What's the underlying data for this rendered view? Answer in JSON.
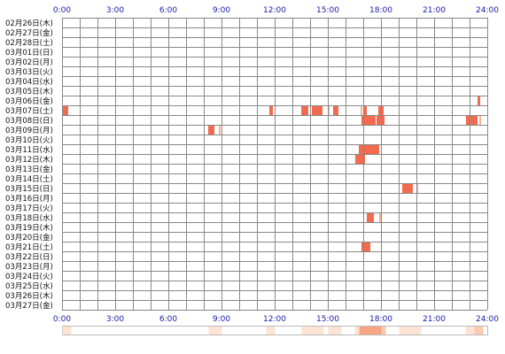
{
  "chart_data": {
    "type": "heatmap",
    "title": "",
    "xlabel": "",
    "ylabel": "",
    "x_range_hours": [
      0,
      24
    ],
    "x_tick_labels": [
      "0:00",
      "3:00",
      "6:00",
      "9:00",
      "12:00",
      "15:00",
      "18:00",
      "21:00",
      "24:00"
    ],
    "grid": true,
    "colors": {
      "activity": "#f26a4f",
      "activity_light": "#f8b090",
      "summary_light": "#fde3d3",
      "summary_mid": "#fbcab0",
      "summary_dark": "#f7a584",
      "grid": "#888888",
      "tick_text": "#1a1aa6"
    },
    "rows": [
      {
        "label": "02月26日(木)",
        "spans": []
      },
      {
        "label": "02月27日(金)",
        "spans": []
      },
      {
        "label": "02月28日(土)",
        "spans": []
      },
      {
        "label": "03月01日(日)",
        "spans": []
      },
      {
        "label": "03月02日(月)",
        "spans": []
      },
      {
        "label": "03月03日(火)",
        "spans": []
      },
      {
        "label": "03月04日(水)",
        "spans": []
      },
      {
        "label": "03月05日(木)",
        "spans": []
      },
      {
        "label": "03月06日(金)",
        "spans": [
          {
            "start": 23.45,
            "end": 23.6,
            "level": 1
          }
        ]
      },
      {
        "label": "03月07日(土)",
        "spans": [
          {
            "start": 0.05,
            "end": 0.35,
            "level": 1
          },
          {
            "start": 11.7,
            "end": 11.9,
            "level": 1
          },
          {
            "start": 13.5,
            "end": 13.9,
            "level": 1
          },
          {
            "start": 14.1,
            "end": 14.7,
            "level": 1
          },
          {
            "start": 15.0,
            "end": 15.1,
            "level": 0.5
          },
          {
            "start": 15.3,
            "end": 15.6,
            "level": 1
          },
          {
            "start": 16.85,
            "end": 16.95,
            "level": 0.5
          },
          {
            "start": 17.05,
            "end": 17.2,
            "level": 1
          },
          {
            "start": 17.85,
            "end": 18.15,
            "level": 1
          }
        ]
      },
      {
        "label": "03月08日(日)",
        "spans": [
          {
            "start": 16.9,
            "end": 17.7,
            "level": 1
          },
          {
            "start": 17.75,
            "end": 18.2,
            "level": 1
          },
          {
            "start": 22.8,
            "end": 23.45,
            "level": 1
          },
          {
            "start": 23.55,
            "end": 23.65,
            "level": 0.5
          }
        ]
      },
      {
        "label": "03月09日(月)",
        "spans": [
          {
            "start": 8.25,
            "end": 8.6,
            "level": 1
          },
          {
            "start": 8.85,
            "end": 8.95,
            "level": 0.5
          }
        ]
      },
      {
        "label": "03月10日(火)",
        "spans": []
      },
      {
        "label": "03月11日(水)",
        "spans": [
          {
            "start": 16.75,
            "end": 17.9,
            "level": 1
          }
        ]
      },
      {
        "label": "03月12日(木)",
        "spans": [
          {
            "start": 16.55,
            "end": 17.1,
            "level": 1
          }
        ]
      },
      {
        "label": "03月13日(金)",
        "spans": []
      },
      {
        "label": "03月14日(土)",
        "spans": []
      },
      {
        "label": "03月15日(日)",
        "spans": [
          {
            "start": 19.2,
            "end": 19.8,
            "level": 1
          },
          {
            "start": 20.0,
            "end": 20.1,
            "level": 0.5
          }
        ]
      },
      {
        "label": "03月16日(月)",
        "spans": []
      },
      {
        "label": "03月17日(火)",
        "spans": []
      },
      {
        "label": "03月18日(水)",
        "spans": [
          {
            "start": 17.2,
            "end": 17.6,
            "level": 1
          },
          {
            "start": 17.9,
            "end": 18.0,
            "level": 0.5
          }
        ]
      },
      {
        "label": "03月19日(木)",
        "spans": []
      },
      {
        "label": "03月20日(金)",
        "spans": []
      },
      {
        "label": "03月21日(土)",
        "spans": [
          {
            "start": 16.9,
            "end": 17.4,
            "level": 1
          }
        ]
      },
      {
        "label": "03月22日(日)",
        "spans": []
      },
      {
        "label": "03月23日(月)",
        "spans": []
      },
      {
        "label": "03月24日(火)",
        "spans": []
      },
      {
        "label": "03月25日(水)",
        "spans": []
      },
      {
        "label": "03月26日(木)",
        "spans": []
      },
      {
        "label": "03月27日(金)",
        "spans": []
      }
    ]
  }
}
